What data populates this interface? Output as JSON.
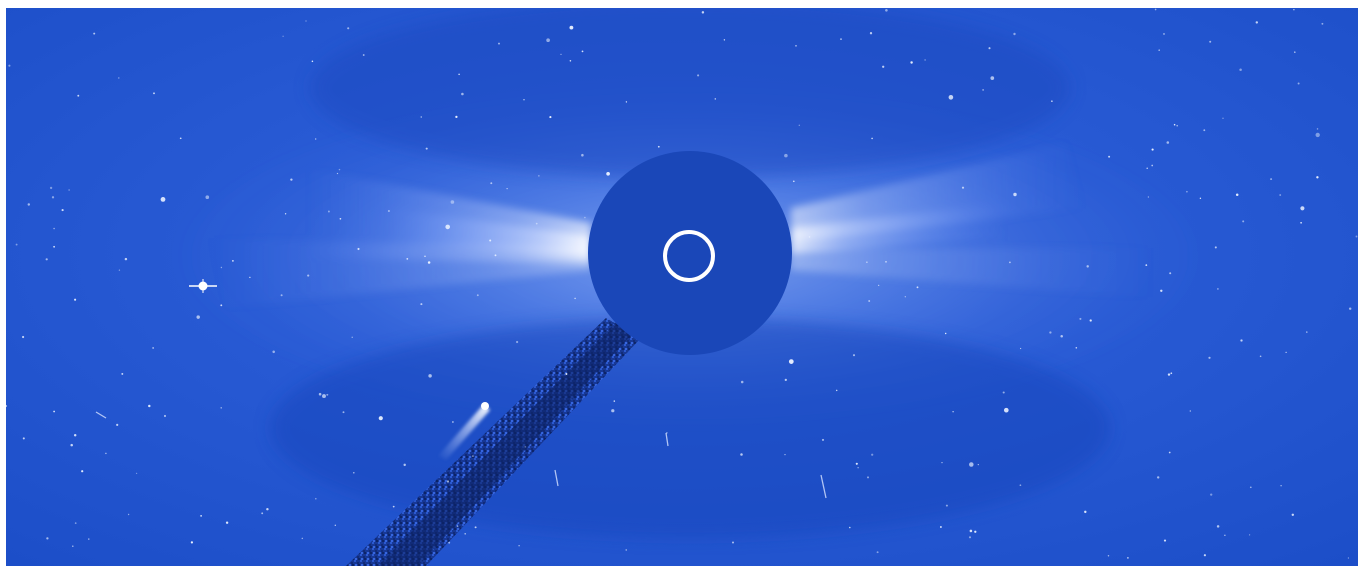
{
  "image": {
    "subject": "coronagraph-view",
    "colors": {
      "background": "#1e52cc",
      "background_deep": "#163fae",
      "glow": "#dfe8ff",
      "occulter": "#1a47b8",
      "sun_ring": "#ffffff",
      "stars": "#e8f0ff",
      "comet": "#ffffff"
    },
    "elements": [
      "occulter-disk",
      "sun-outline-ring",
      "coronal-streamers",
      "pylon-shadow",
      "comet",
      "bright-star",
      "star-field"
    ]
  }
}
